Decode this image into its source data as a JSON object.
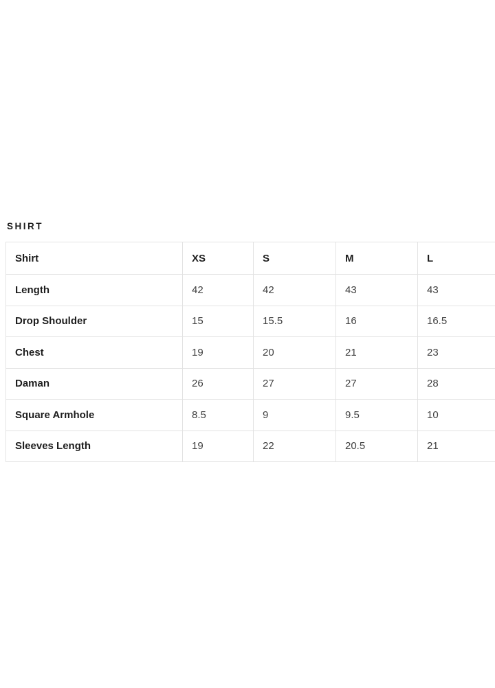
{
  "heading": {
    "text": "SHIRT"
  },
  "size_table": {
    "header": {
      "label": "Shirt",
      "sizes": [
        "XS",
        "S",
        "M",
        "L"
      ]
    },
    "rows": [
      {
        "label": "Length",
        "values": [
          "42",
          "42",
          "43",
          "43"
        ]
      },
      {
        "label": "Drop Shoulder",
        "values": [
          "15",
          "15.5",
          "16",
          "16.5"
        ]
      },
      {
        "label": "Chest",
        "values": [
          "19",
          "20",
          "21",
          "23"
        ]
      },
      {
        "label": "Daman",
        "values": [
          "26",
          "27",
          "27",
          "28"
        ]
      },
      {
        "label": "Square Armhole",
        "values": [
          "8.5",
          "9",
          "9.5",
          "10"
        ]
      },
      {
        "label": "Sleeves Length",
        "values": [
          "19",
          "22",
          "20.5",
          "21"
        ]
      }
    ]
  },
  "colors": {
    "page_background": "#ffffff",
    "table_border": "#e2e2e2",
    "heading_text": "#1e1e1e",
    "row_label_text": "#1e1e1e",
    "value_text": "#3f3f3f"
  }
}
